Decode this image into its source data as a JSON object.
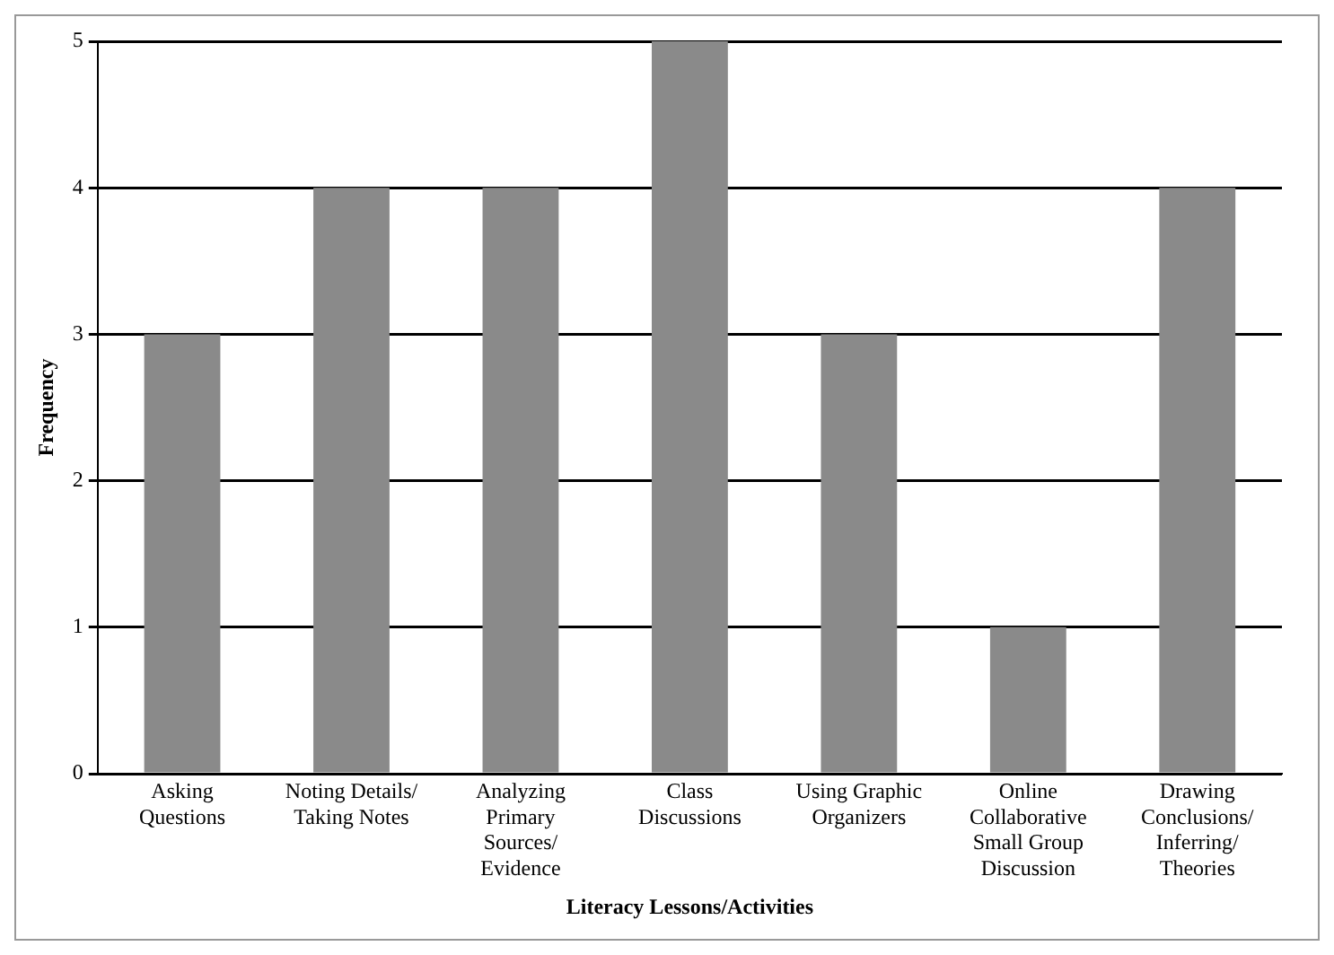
{
  "chart_data": {
    "type": "bar",
    "xlabel": "Literacy Lessons/Activities",
    "ylabel": "Frequency",
    "categories": [
      "Asking Questions",
      "Noting Details/ Taking Notes",
      "Analyzing Primary Sources/ Evidence",
      "Class Discussions",
      "Using Graphic Organizers",
      "Online Collaborative Small Group Discussion",
      "Drawing Conclusions/ Inferring/ Theories"
    ],
    "values": [
      3,
      4,
      4,
      5,
      3,
      1,
      4
    ],
    "color": "#8a8a8a",
    "ylim": [
      0,
      5
    ],
    "yticks": [
      0,
      1,
      2,
      3,
      4,
      5
    ],
    "grid": "y",
    "legend": false
  }
}
